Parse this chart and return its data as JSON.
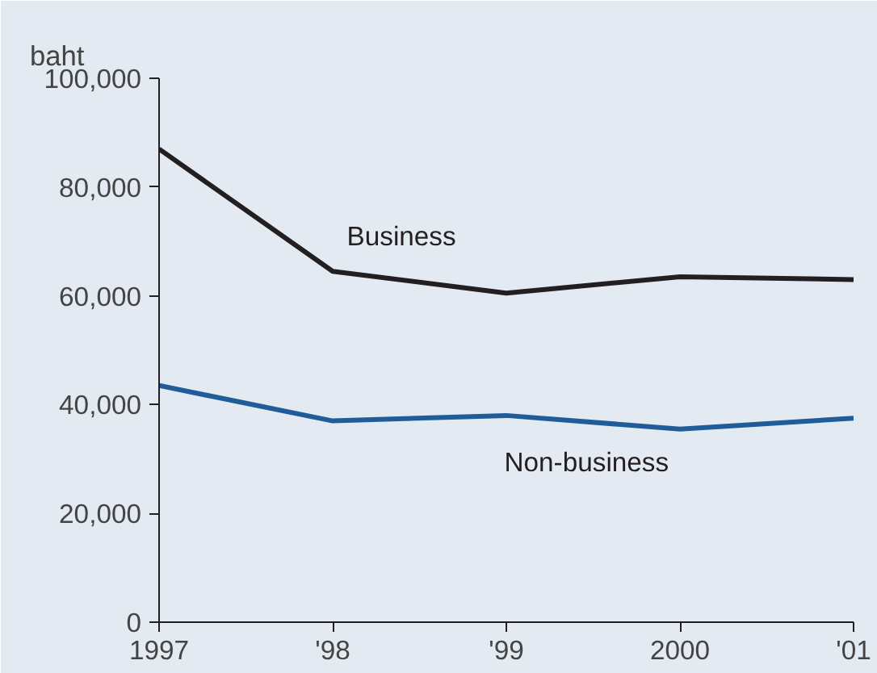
{
  "chart_data": {
    "type": "line",
    "ylabel": "baht",
    "x": [
      1997,
      1998,
      1999,
      2000,
      2001
    ],
    "xlim": [
      1997,
      2001
    ],
    "xticks": [
      1997,
      {
        "value": 1998,
        "label": "'98"
      },
      {
        "value": 1999,
        "label": "'99"
      },
      2000,
      {
        "value": 2001,
        "label": "'01"
      }
    ],
    "ylim": [
      0,
      100000
    ],
    "yticks": [
      0,
      {
        "value": 20000,
        "label": "20,000"
      },
      {
        "value": 40000,
        "label": "40,000"
      },
      {
        "value": 60000,
        "label": "60,000"
      },
      {
        "value": 80000,
        "label": "80,000"
      },
      {
        "value": 100000,
        "label": "100,000"
      }
    ],
    "series": [
      {
        "name": "Business",
        "color": "#231f20",
        "values": [
          87000,
          64500,
          60500,
          63500,
          63000
        ]
      },
      {
        "name": "Non-business",
        "color": "#1f5c99",
        "values": [
          43500,
          37000,
          38000,
          35500,
          37500
        ]
      }
    ],
    "grid": false,
    "legend": false
  }
}
